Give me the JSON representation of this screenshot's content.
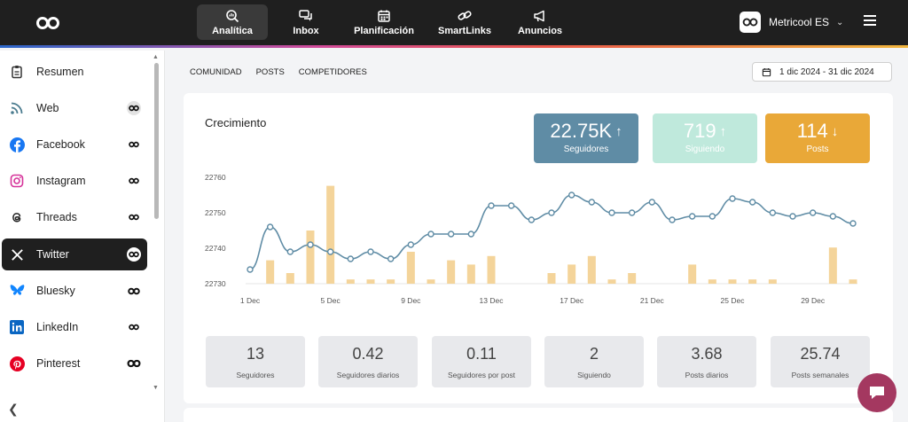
{
  "nav": {
    "items": [
      {
        "label": "Analítica",
        "icon": "magnifier-chart-icon",
        "active": true
      },
      {
        "label": "Inbox",
        "icon": "chat-bubbles-icon",
        "active": false
      },
      {
        "label": "Planificación",
        "icon": "calendar-icon",
        "active": false
      },
      {
        "label": "SmartLinks",
        "icon": "link-icon",
        "active": false
      },
      {
        "label": "Anuncios",
        "icon": "megaphone-icon",
        "active": false
      }
    ],
    "account": "Metricool ES"
  },
  "sidebar": {
    "items": [
      {
        "label": "Resumen"
      },
      {
        "label": "Web"
      },
      {
        "label": "Facebook"
      },
      {
        "label": "Instagram"
      },
      {
        "label": "Threads"
      },
      {
        "label": "Twitter"
      },
      {
        "label": "Bluesky"
      },
      {
        "label": "LinkedIn"
      },
      {
        "label": "Pinterest"
      }
    ]
  },
  "subtabs": [
    "COMUNIDAD",
    "POSTS",
    "COMPETIDORES"
  ],
  "date_range": "1 dic 2024 - 31 dic 2024",
  "growth": {
    "title": "Crecimiento",
    "kpis": [
      {
        "value": "22.75K",
        "arrow": "↑",
        "label": "Seguidores",
        "color": "#5f8ca5"
      },
      {
        "value": "719",
        "arrow": "↑",
        "label": "Siguiendo",
        "color": "#bfe9dc"
      },
      {
        "value": "114",
        "arrow": "↓",
        "label": "Posts",
        "color": "#e9a838"
      }
    ]
  },
  "chart_data": {
    "type": "bar+line",
    "y_ticks": [
      "22760",
      "22750",
      "22740",
      "22730"
    ],
    "ylim": [
      22730,
      22760
    ],
    "x_tick_labels": [
      "1 Dec",
      "5 Dec",
      "9 Dec",
      "13 Dec",
      "17 Dec",
      "21 Dec",
      "25 Dec",
      "29 Dec"
    ],
    "days": [
      1,
      2,
      3,
      4,
      5,
      6,
      7,
      8,
      9,
      10,
      11,
      12,
      13,
      14,
      15,
      16,
      17,
      18,
      19,
      20,
      21,
      22,
      23,
      24,
      25,
      26,
      27,
      28,
      29,
      30,
      31
    ],
    "series": [
      {
        "type": "line",
        "color": "#5f8ca5",
        "values": [
          22734,
          22746,
          22739,
          22741,
          22739,
          22737,
          22739,
          22737,
          22741,
          22744,
          22744,
          22744,
          22752,
          22752,
          22748,
          22750,
          22755,
          22753,
          22750,
          22750,
          22753,
          22748,
          22749,
          22749,
          22754,
          22753,
          22750,
          22749,
          22750,
          22749,
          22747
        ]
      },
      {
        "type": "bar",
        "color": "#f4d49a",
        "values": [
          0,
          5.5,
          2.5,
          12.5,
          23,
          1,
          1,
          1,
          7.5,
          1,
          5.5,
          4.5,
          6.5,
          0,
          0,
          2.5,
          4.5,
          6.5,
          1,
          2.5,
          0,
          0,
          4.5,
          1,
          1,
          1,
          1,
          0,
          0,
          8.5,
          1
        ]
      }
    ]
  },
  "stats": [
    {
      "value": "13",
      "label": "Seguidores"
    },
    {
      "value": "0.42",
      "label": "Seguidores diarios"
    },
    {
      "value": "0.11",
      "label": "Seguidores por post"
    },
    {
      "value": "2",
      "label": "Siguiendo"
    },
    {
      "value": "3.68",
      "label": "Posts diarios"
    },
    {
      "value": "25.74",
      "label": "Posts semanales"
    }
  ]
}
